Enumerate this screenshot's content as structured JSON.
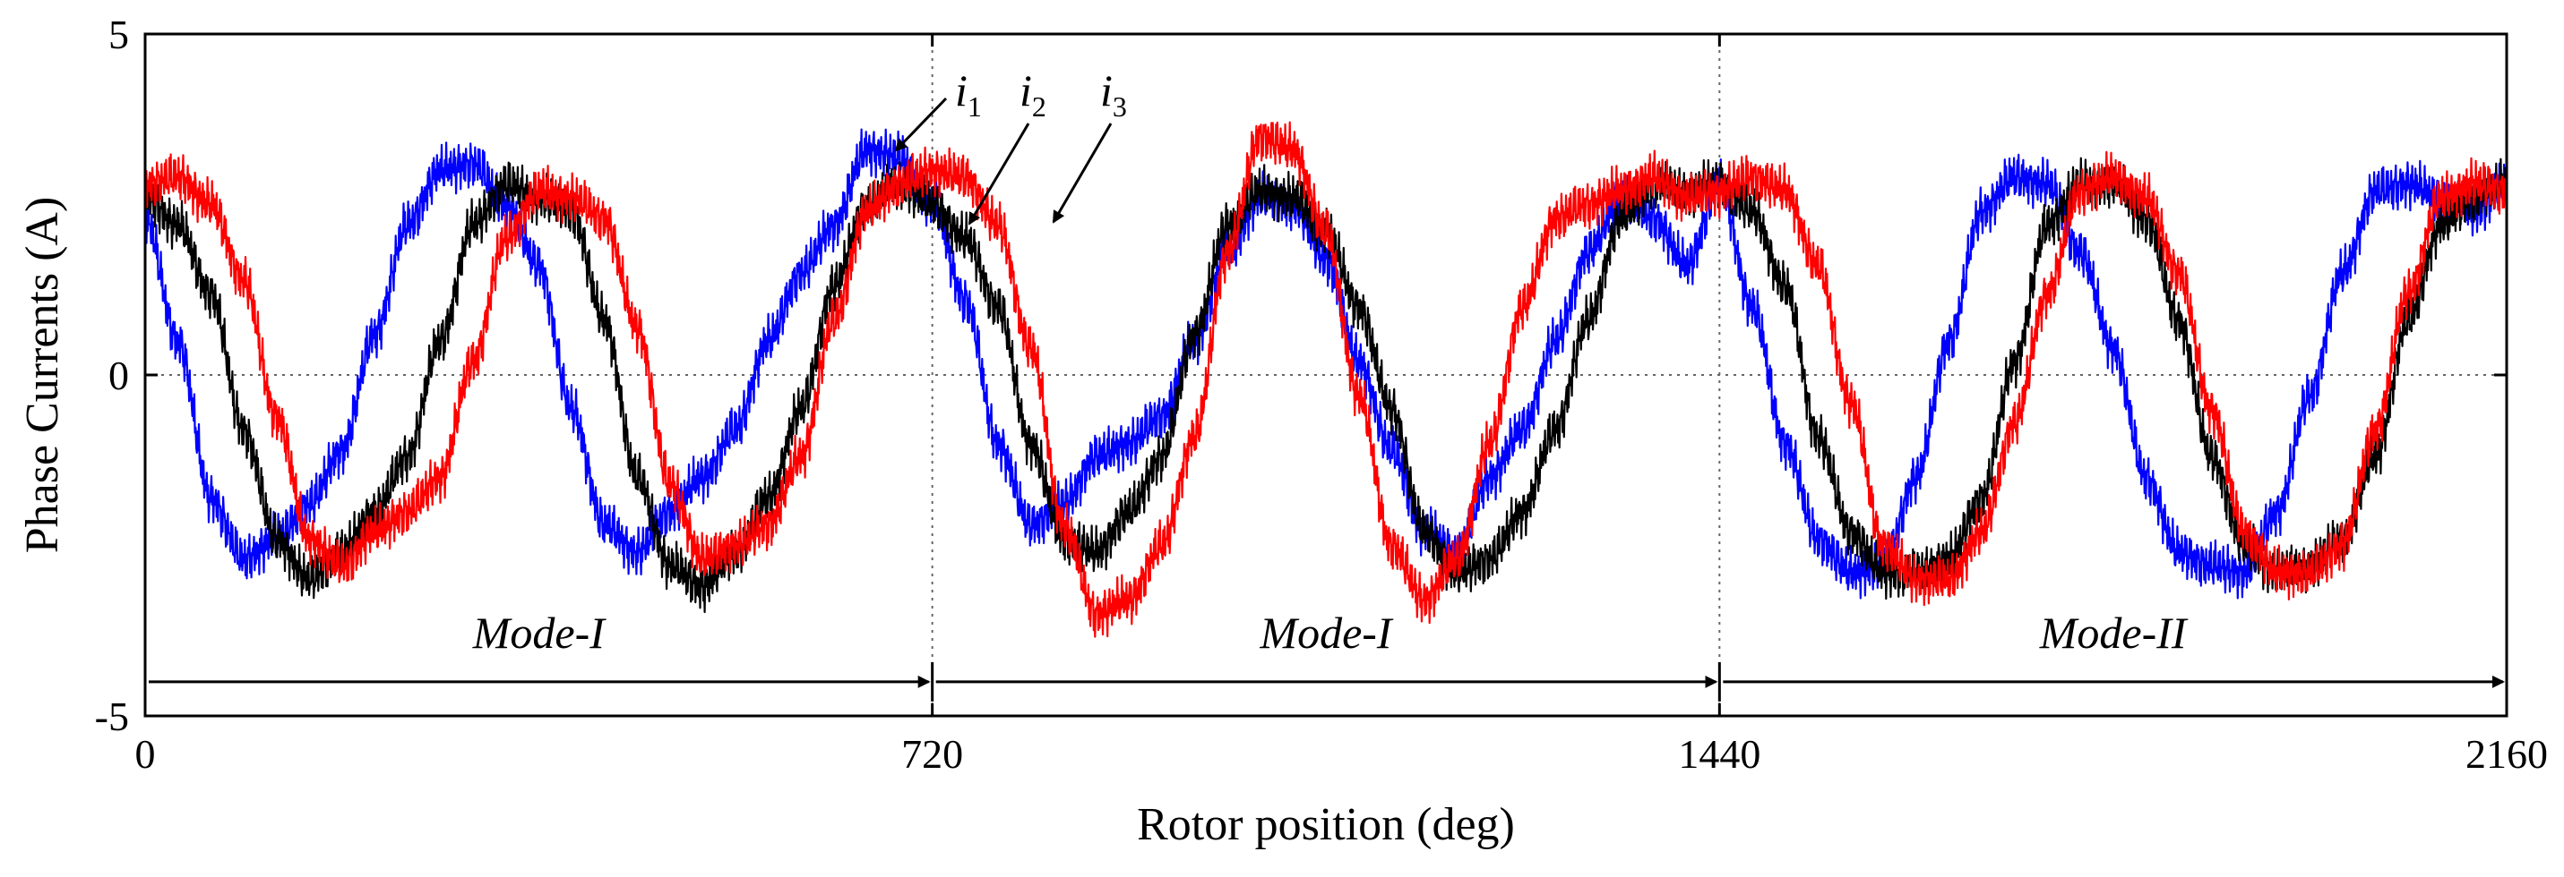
{
  "chart_data": {
    "type": "line",
    "title": "",
    "xlabel": "Rotor position (deg)",
    "ylabel": "Phase Currents (A)",
    "xlim": [
      0,
      2160
    ],
    "ylim": [
      -5,
      5
    ],
    "x_ticks": [
      "0",
      "720",
      "1440",
      "2160"
    ],
    "y_ticks": [
      "5",
      "0",
      "-5"
    ],
    "grid": "dotted lines at x = 720, 1440 and y = 0",
    "series": [
      {
        "name": "i1",
        "color": "#0000ff",
        "x": [
          0,
          30,
          60,
          90,
          120,
          150,
          180,
          210,
          240,
          270,
          300,
          330,
          360,
          390,
          420,
          450,
          480,
          510,
          540,
          570,
          600,
          630,
          660,
          690,
          720,
          750,
          780,
          810,
          840,
          870,
          900,
          930,
          960,
          990,
          1020,
          1050,
          1080,
          1110,
          1140,
          1170,
          1200,
          1230,
          1260,
          1290,
          1320,
          1350,
          1380,
          1410,
          1440,
          1470,
          1500,
          1530,
          1560,
          1590,
          1620,
          1650,
          1680,
          1710,
          1740,
          1770,
          1800,
          1830,
          1860,
          1890,
          1920,
          1950,
          1980,
          2010,
          2040,
          2070,
          2100,
          2130,
          2160
        ],
        "values": [
          2.3,
          0.5,
          -1.8,
          -2.7,
          -2.4,
          -1.9,
          -1.1,
          0.6,
          2.2,
          3.0,
          3.1,
          2.5,
          1.6,
          -0.5,
          -2.2,
          -2.6,
          -2.0,
          -1.5,
          -0.8,
          0.5,
          1.5,
          2.2,
          3.3,
          3.2,
          2.5,
          1.1,
          -1.0,
          -2.2,
          -1.9,
          -1.2,
          -1.0,
          -0.6,
          0.5,
          1.8,
          2.6,
          2.5,
          1.7,
          0.2,
          -1.1,
          -2.3,
          -2.6,
          -1.5,
          -0.8,
          0.5,
          1.8,
          2.6,
          2.3,
          1.6,
          2.8,
          1.0,
          -1.0,
          -2.4,
          -2.9,
          -2.8,
          -1.5,
          0.5,
          2.4,
          2.9,
          2.8,
          1.8,
          0.4,
          -1.5,
          -2.6,
          -2.8,
          -2.9,
          -2.0,
          -0.3,
          1.5,
          2.7,
          2.8,
          2.6,
          2.4,
          2.8
        ]
      },
      {
        "name": "i2",
        "color": "#000000",
        "x": [
          0,
          30,
          60,
          90,
          120,
          150,
          180,
          210,
          240,
          270,
          300,
          330,
          360,
          390,
          420,
          450,
          480,
          510,
          540,
          570,
          600,
          630,
          660,
          690,
          720,
          750,
          780,
          810,
          840,
          870,
          900,
          930,
          960,
          990,
          1020,
          1050,
          1080,
          1110,
          1140,
          1170,
          1200,
          1230,
          1260,
          1290,
          1320,
          1350,
          1380,
          1410,
          1440,
          1470,
          1500,
          1530,
          1560,
          1590,
          1620,
          1650,
          1680,
          1710,
          1740,
          1770,
          1800,
          1830,
          1860,
          1890,
          1920,
          1950,
          1980,
          2010,
          2040,
          2070,
          2100,
          2130,
          2160
        ],
        "values": [
          2.6,
          2.2,
          1.2,
          -0.8,
          -2.4,
          -3.0,
          -2.6,
          -2.0,
          -1.2,
          0.5,
          2.2,
          2.8,
          2.6,
          2.4,
          0.8,
          -1.5,
          -2.8,
          -3.1,
          -2.6,
          -1.8,
          -0.5,
          1.3,
          2.5,
          2.8,
          2.5,
          2.0,
          1.0,
          -1.0,
          -2.4,
          -2.6,
          -2.0,
          -1.2,
          0.6,
          2.2,
          2.7,
          2.6,
          2.1,
          1.0,
          -0.5,
          -2.3,
          -2.9,
          -2.7,
          -2.0,
          -0.8,
          0.8,
          2.3,
          2.8,
          2.7,
          2.8,
          2.4,
          1.3,
          -0.9,
          -2.3,
          -2.9,
          -2.9,
          -2.7,
          -1.8,
          0.2,
          2.2,
          2.8,
          2.8,
          2.3,
          0.8,
          -1.2,
          -2.5,
          -2.9,
          -2.8,
          -2.4,
          -1.2,
          0.8,
          2.2,
          2.6,
          2.8
        ]
      },
      {
        "name": "i3",
        "color": "#ff0000",
        "x": [
          0,
          30,
          60,
          90,
          120,
          150,
          180,
          210,
          240,
          270,
          300,
          330,
          360,
          390,
          420,
          450,
          480,
          510,
          540,
          570,
          600,
          630,
          660,
          690,
          720,
          750,
          780,
          810,
          840,
          870,
          900,
          930,
          960,
          990,
          1020,
          1050,
          1080,
          1110,
          1140,
          1170,
          1200,
          1230,
          1260,
          1290,
          1320,
          1350,
          1380,
          1410,
          1440,
          1470,
          1500,
          1530,
          1560,
          1590,
          1620,
          1650,
          1680,
          1710,
          1740,
          1770,
          1800,
          1830,
          1860,
          1890,
          1920,
          1950,
          1980,
          2010,
          2040,
          2070,
          2100,
          2130,
          2160
        ],
        "values": [
          2.8,
          2.9,
          2.5,
          1.4,
          -0.6,
          -2.4,
          -2.8,
          -2.3,
          -2.0,
          -1.5,
          0.2,
          2.0,
          2.7,
          2.6,
          2.3,
          0.7,
          -1.6,
          -2.7,
          -2.5,
          -2.2,
          -1.2,
          0.8,
          2.4,
          2.8,
          3.0,
          2.9,
          2.2,
          0.4,
          -2.2,
          -3.5,
          -3.3,
          -2.5,
          -0.9,
          1.8,
          3.5,
          3.3,
          2.1,
          -0.3,
          -2.5,
          -3.3,
          -2.7,
          -1.0,
          1.0,
          2.3,
          2.5,
          2.7,
          2.9,
          2.6,
          2.7,
          2.9,
          2.7,
          1.6,
          -0.4,
          -2.5,
          -3.0,
          -3.0,
          -2.3,
          -0.7,
          1.2,
          2.7,
          2.9,
          2.6,
          1.5,
          -0.5,
          -2.3,
          -2.9,
          -2.9,
          -2.5,
          -0.8,
          1.2,
          2.6,
          2.8,
          2.7
        ]
      }
    ],
    "annotations": {
      "callouts": [
        {
          "main": "i",
          "sub": "1"
        },
        {
          "main": "i",
          "sub": "2"
        },
        {
          "main": "i",
          "sub": "3"
        }
      ],
      "modes": [
        {
          "label": "Mode-I",
          "x_start": 0,
          "x_end": 720
        },
        {
          "label": "Mode-I",
          "x_start": 720,
          "x_end": 1440
        },
        {
          "label": "Mode-II",
          "x_start": 1440,
          "x_end": 2160
        }
      ],
      "mode_arrow_y": -4.5
    }
  }
}
